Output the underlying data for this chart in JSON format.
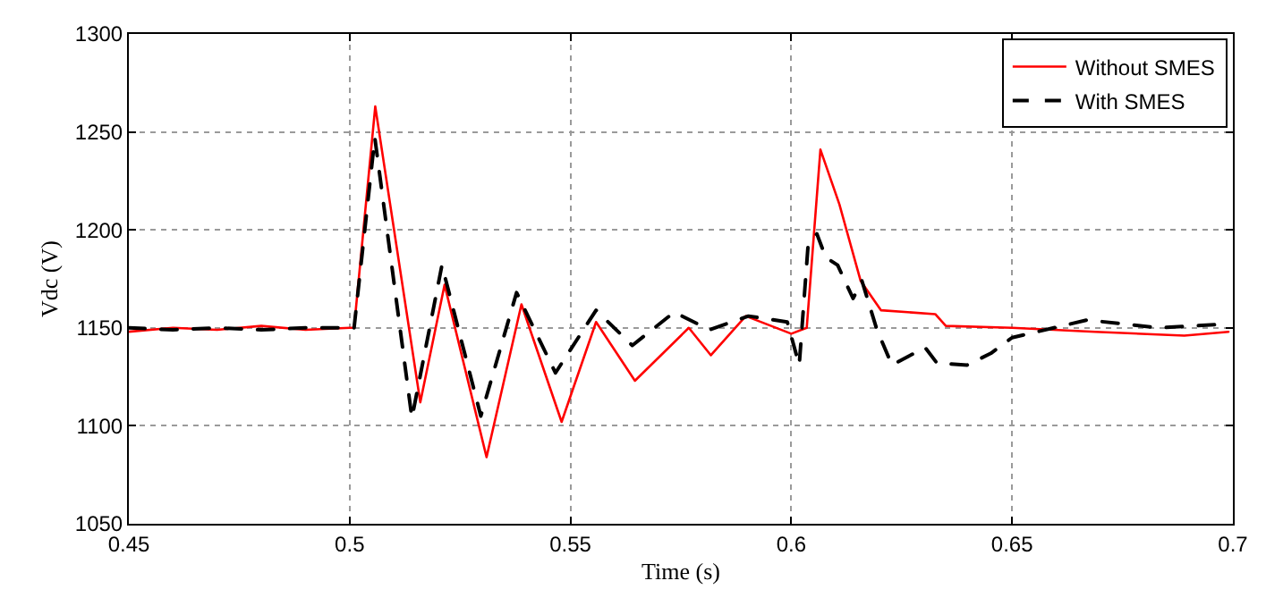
{
  "chart_data": {
    "type": "line",
    "xlabel": "Time (s)",
    "ylabel": "Vdc (V)",
    "xlim": [
      0.45,
      0.7
    ],
    "xticks": [
      0.45,
      0.5,
      0.55,
      0.6,
      0.65,
      0.7
    ],
    "ylim": [
      1050,
      1300
    ],
    "yticks": [
      1050,
      1100,
      1150,
      1200,
      1250,
      1300
    ],
    "grid": true,
    "legend": "top right",
    "marker": "none",
    "series": [
      {
        "name": "Without SMES",
        "color": "#ff0000",
        "line_style": "solid",
        "x": [
          0.45,
          0.46,
          0.47,
          0.48,
          0.49,
          0.5,
          0.501,
          0.5058,
          0.516,
          0.5215,
          0.531,
          0.5389,
          0.548,
          0.5558,
          0.5646,
          0.5768,
          0.5818,
          0.5897,
          0.6,
          0.6035,
          0.6066,
          0.6109,
          0.6157,
          0.6203,
          0.6326,
          0.635,
          0.65,
          0.6688,
          0.689,
          0.699
        ],
        "values": [
          1148,
          1150,
          1149,
          1151,
          1149,
          1150,
          1150,
          1263,
          1112,
          1172,
          1084,
          1162,
          1102,
          1153,
          1123,
          1150,
          1136,
          1156,
          1147,
          1150,
          1241,
          1213,
          1174,
          1159,
          1157,
          1151,
          1150,
          1148,
          1146,
          1148
        ]
      },
      {
        "name": "With SMES",
        "color": "#000000",
        "line_style": "dashed",
        "x": [
          0.45,
          0.46,
          0.47,
          0.48,
          0.49,
          0.5,
          0.501,
          0.5057,
          0.5141,
          0.5209,
          0.5297,
          0.5378,
          0.5466,
          0.5558,
          0.564,
          0.5735,
          0.5815,
          0.5903,
          0.5991,
          0.6018,
          0.6038,
          0.6058,
          0.6078,
          0.6105,
          0.614,
          0.616,
          0.6194,
          0.6228,
          0.6303,
          0.633,
          0.6398,
          0.6452,
          0.65,
          0.667,
          0.6833,
          0.699
        ],
        "values": [
          1150,
          1149,
          1150,
          1149,
          1150,
          1150,
          1150,
          1247,
          1104,
          1182,
          1105,
          1168,
          1127,
          1159,
          1141,
          1158,
          1149,
          1156,
          1153,
          1131,
          1192,
          1198,
          1186,
          1182,
          1165,
          1174,
          1149,
          1131,
          1140,
          1132,
          1131,
          1137,
          1145,
          1154,
          1150,
          1152
        ]
      }
    ]
  }
}
